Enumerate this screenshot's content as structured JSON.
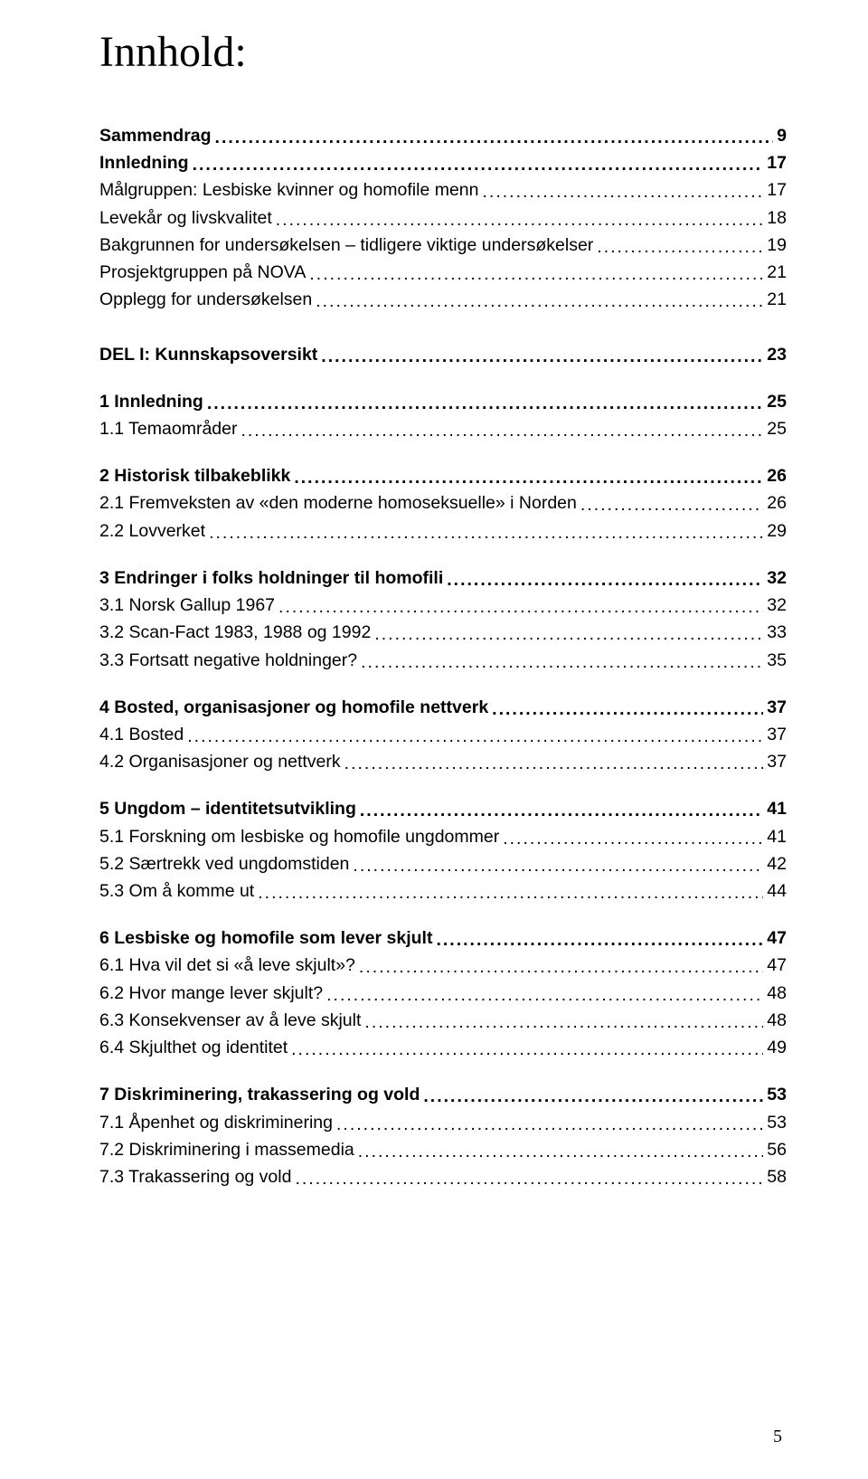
{
  "title": "Innhold:",
  "page_number": "5",
  "typography": {
    "title_fontsize": 48,
    "entry_fontsize": 19.5,
    "line_height": 1.55,
    "text_color": "#000000",
    "background_color": "#ffffff"
  },
  "blocks": [
    {
      "gap_before": "none",
      "entries": [
        {
          "label": "Sammendrag",
          "page": "9",
          "bold": true
        },
        {
          "label": "Innledning",
          "page": "17",
          "bold": true
        },
        {
          "label": "Målgruppen: Lesbiske kvinner og homofile menn",
          "page": "17",
          "bold": false
        },
        {
          "label": "Levekår og livskvalitet",
          "page": "18",
          "bold": false
        },
        {
          "label": "Bakgrunnen for undersøkelsen – tidligere viktige undersøkelser",
          "page": "19",
          "bold": false
        },
        {
          "label": "Prosjektgruppen på NOVA",
          "page": "21",
          "bold": false
        },
        {
          "label": "Opplegg for undersøkelsen",
          "page": "21",
          "bold": false
        }
      ]
    },
    {
      "gap_before": "block",
      "entries": [
        {
          "label": "DEL I: Kunnskapsoversikt",
          "page": "23",
          "bold": true
        }
      ]
    },
    {
      "gap_before": "medium",
      "entries": [
        {
          "label": "1  Innledning",
          "page": "25",
          "bold": true
        },
        {
          "label": "1.1 Temaområder",
          "page": "25",
          "bold": false
        }
      ]
    },
    {
      "gap_before": "medium",
      "entries": [
        {
          "label": "2  Historisk tilbakeblikk",
          "page": "26",
          "bold": true
        },
        {
          "label": "2.1 Fremveksten av «den moderne homoseksuelle» i Norden",
          "page": "26",
          "bold": false
        },
        {
          "label": "2.2 Lovverket",
          "page": "29",
          "bold": false
        }
      ]
    },
    {
      "gap_before": "medium",
      "entries": [
        {
          "label": "3  Endringer i folks holdninger til homofili",
          "page": "32",
          "bold": true
        },
        {
          "label": "3.1 Norsk Gallup 1967",
          "page": "32",
          "bold": false
        },
        {
          "label": "3.2 Scan-Fact 1983, 1988 og 1992",
          "page": "33",
          "bold": false
        },
        {
          "label": "3.3 Fortsatt negative holdninger?",
          "page": "35",
          "bold": false
        }
      ]
    },
    {
      "gap_before": "medium",
      "entries": [
        {
          "label": "4  Bosted, organisasjoner og homofile nettverk",
          "page": "37",
          "bold": true
        },
        {
          "label": "4.1 Bosted",
          "page": "37",
          "bold": false
        },
        {
          "label": "4.2 Organisasjoner og nettverk",
          "page": "37",
          "bold": false
        }
      ]
    },
    {
      "gap_before": "medium",
      "entries": [
        {
          "label": "5 Ungdom – identitetsutvikling",
          "page": "41",
          "bold": true
        },
        {
          "label": "5.1 Forskning om lesbiske og homofile ungdommer",
          "page": "41",
          "bold": false
        },
        {
          "label": "5.2 Særtrekk ved ungdomstiden",
          "page": "42",
          "bold": false
        },
        {
          "label": "5.3 Om å komme ut",
          "page": "44",
          "bold": false
        }
      ]
    },
    {
      "gap_before": "medium",
      "entries": [
        {
          "label": "6  Lesbiske og homofile som lever skjult",
          "page": "47",
          "bold": true
        },
        {
          "label": "6.1 Hva vil det si «å leve skjult»?",
          "page": "47",
          "bold": false
        },
        {
          "label": "6.2 Hvor mange lever skjult?",
          "page": "48",
          "bold": false
        },
        {
          "label": "6.3 Konsekvenser av å leve skjult",
          "page": "48",
          "bold": false
        },
        {
          "label": "6.4 Skjulthet og identitet",
          "page": "49",
          "bold": false
        }
      ]
    },
    {
      "gap_before": "medium",
      "entries": [
        {
          "label": "7  Diskriminering, trakassering og vold",
          "page": "53",
          "bold": true
        },
        {
          "label": "7.1 Åpenhet og diskriminering",
          "page": "53",
          "bold": false
        },
        {
          "label": "7.2 Diskriminering i massemedia",
          "page": "56",
          "bold": false
        },
        {
          "label": "7.3 Trakassering og vold",
          "page": "58",
          "bold": false
        }
      ]
    }
  ]
}
